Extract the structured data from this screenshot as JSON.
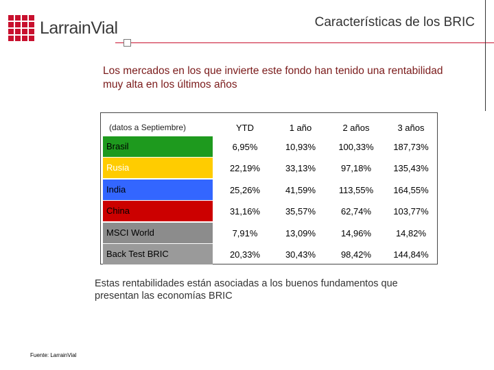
{
  "header": {
    "logo_text": "LarrainVial",
    "title": "Características de los BRIC"
  },
  "intro": "Los mercados en los que invierte este fondo han tenido una rentabilidad muy alta en los últimos años",
  "table": {
    "header_label": "(datos a Septiembre)",
    "columns": [
      "YTD",
      "1 año",
      "2 años",
      "3 años"
    ],
    "rows": [
      {
        "name": "Brasil",
        "color": "#1e9a1e",
        "text_color": "#000000",
        "values": [
          "6,95%",
          "10,93%",
          "100,33%",
          "187,73%"
        ]
      },
      {
        "name": "Rusia",
        "color": "#ffcc00",
        "text_color": "#ffffff",
        "values": [
          "22,19%",
          "33,13%",
          "97,18%",
          "135,43%"
        ]
      },
      {
        "name": "India",
        "color": "#3366ff",
        "text_color": "#000000",
        "values": [
          "25,26%",
          "41,59%",
          "113,55%",
          "164,55%"
        ]
      },
      {
        "name": "China",
        "color": "#cc0000",
        "text_color": "#000000",
        "values": [
          "31,16%",
          "35,57%",
          "62,74%",
          "103,77%"
        ]
      },
      {
        "name": "MSCI World",
        "color": "#8c8c8c",
        "text_color": "#000000",
        "values": [
          "7,91%",
          "13,09%",
          "14,96%",
          "14,82%"
        ]
      },
      {
        "name": "Back Test BRIC",
        "color": "#9a9a9a",
        "text_color": "#000000",
        "values": [
          "20,33%",
          "30,43%",
          "98,42%",
          "144,84%"
        ]
      }
    ]
  },
  "closing": "Estas rentabilidades están asociadas a los buenos fundamentos que presentan las economías BRIC",
  "source": "Fuente: LarrainVial"
}
